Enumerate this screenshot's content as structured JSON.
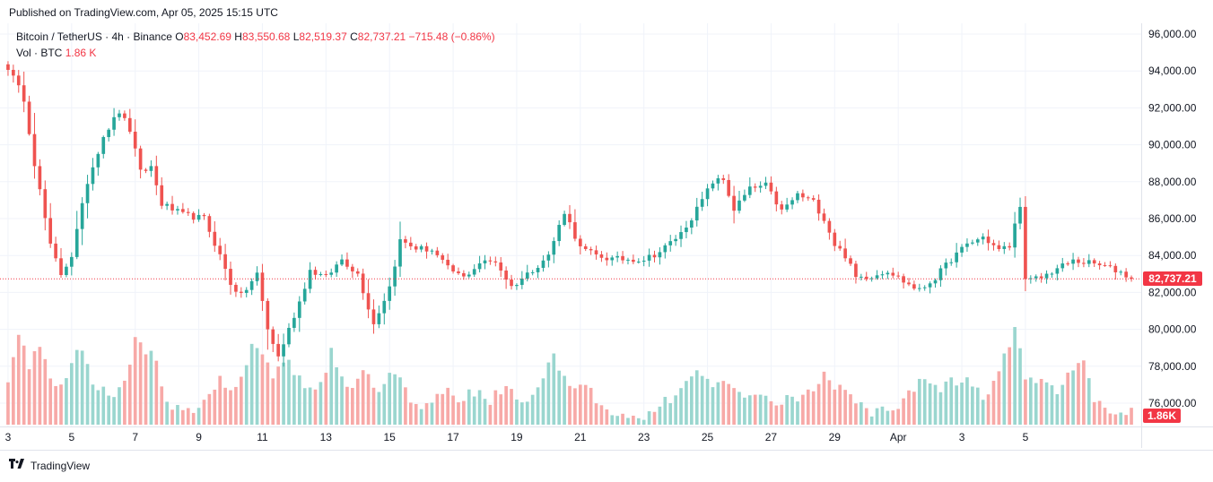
{
  "header": {
    "published": "Published on TradingView.com, Apr 05, 2025 15:15 UTC"
  },
  "legend": {
    "symbol": "Bitcoin / TetherUS · 4h · Binance",
    "o_label": "O",
    "o_value": "83,452.69",
    "h_label": "H",
    "h_value": "83,550.68",
    "l_label": "L",
    "l_value": "82,519.37",
    "c_label": "C",
    "c_value": "82,737.21",
    "change": "−715.48 (−0.86%)",
    "vol_label": "Vol · BTC",
    "vol_value": "1.86 K"
  },
  "price_axis": {
    "ticks": [
      "96,000.00",
      "94,000.00",
      "92,000.00",
      "90,000.00",
      "88,000.00",
      "86,000.00",
      "84,000.00",
      "82,000.00",
      "80,000.00",
      "78,000.00",
      "76,000.00"
    ],
    "current_price_label": "82,737.21",
    "current_volume_label": "1.86K"
  },
  "time_axis": {
    "labels": [
      "3",
      "5",
      "7",
      "9",
      "11",
      "13",
      "15",
      "17",
      "19",
      "21",
      "23",
      "25",
      "27",
      "29",
      "Apr",
      "3",
      "5"
    ]
  },
  "branding": {
    "name": "TradingView",
    "logo_icon": "tradingview-logo-icon"
  },
  "colors": {
    "up": "#26a69a",
    "down": "#ef5350",
    "vol_up": "#9ad6cf",
    "vol_down": "#f7a9a7",
    "grid": "#f0f3fa",
    "current_line": "#f23645"
  },
  "chart_data": {
    "type": "candlestick",
    "symbol": "BTCUSDT",
    "interval": "4h",
    "ylim": [
      75000,
      96600
    ],
    "current_price": 82737.21,
    "anchors": [
      [
        0,
        94200
      ],
      [
        3,
        92500
      ],
      [
        5,
        89000
      ],
      [
        8,
        84500
      ],
      [
        10,
        83000
      ],
      [
        12,
        84000
      ],
      [
        15,
        88000
      ],
      [
        18,
        90500
      ],
      [
        21,
        91800
      ],
      [
        23,
        90800
      ],
      [
        25,
        88500
      ],
      [
        27,
        88800
      ],
      [
        29,
        86800
      ],
      [
        33,
        86200
      ],
      [
        37,
        86000
      ],
      [
        40,
        84000
      ],
      [
        42,
        82500
      ],
      [
        44,
        81800
      ],
      [
        47,
        83000
      ],
      [
        49,
        80000
      ],
      [
        51,
        78500
      ],
      [
        53,
        80000
      ],
      [
        55,
        81500
      ],
      [
        57,
        83200
      ],
      [
        60,
        82800
      ],
      [
        63,
        83800
      ],
      [
        66,
        83000
      ],
      [
        69,
        80300
      ],
      [
        72,
        82300
      ],
      [
        74,
        84800
      ],
      [
        77,
        84400
      ],
      [
        80,
        84300
      ],
      [
        83,
        83300
      ],
      [
        86,
        82800
      ],
      [
        89,
        83600
      ],
      [
        92,
        83700
      ],
      [
        95,
        82300
      ],
      [
        98,
        83000
      ],
      [
        102,
        84000
      ],
      [
        105,
        86400
      ],
      [
        108,
        84400
      ],
      [
        111,
        84000
      ],
      [
        114,
        83800
      ],
      [
        117,
        83800
      ],
      [
        120,
        83800
      ],
      [
        123,
        84200
      ],
      [
        127,
        85200
      ],
      [
        130,
        86500
      ],
      [
        133,
        88000
      ],
      [
        135,
        88100
      ],
      [
        137,
        86500
      ],
      [
        140,
        87600
      ],
      [
        143,
        87800
      ],
      [
        146,
        86400
      ],
      [
        149,
        87300
      ],
      [
        152,
        86900
      ],
      [
        154,
        86000
      ],
      [
        156,
        84600
      ],
      [
        158,
        84000
      ],
      [
        160,
        82800
      ],
      [
        163,
        82900
      ],
      [
        166,
        83200
      ],
      [
        169,
        82600
      ],
      [
        172,
        82100
      ],
      [
        175,
        82800
      ],
      [
        178,
        83800
      ],
      [
        181,
        84600
      ],
      [
        184,
        85000
      ],
      [
        187,
        84300
      ],
      [
        189,
        84500
      ],
      [
        191,
        86800
      ],
      [
        192,
        82600
      ],
      [
        195,
        82800
      ],
      [
        198,
        83300
      ],
      [
        201,
        83700
      ],
      [
        204,
        83600
      ],
      [
        207,
        83400
      ],
      [
        210,
        83100
      ],
      [
        212,
        82737
      ]
    ],
    "volume_anchors": [
      [
        0,
        0.6
      ],
      [
        2,
        1.2
      ],
      [
        4,
        0.7
      ],
      [
        6,
        1.05
      ],
      [
        8,
        0.55
      ],
      [
        10,
        0.45
      ],
      [
        12,
        0.8
      ],
      [
        14,
        0.95
      ],
      [
        16,
        0.55
      ],
      [
        18,
        0.45
      ],
      [
        20,
        0.3
      ],
      [
        22,
        0.55
      ],
      [
        24,
        1.1
      ],
      [
        26,
        0.95
      ],
      [
        28,
        0.85
      ],
      [
        30,
        0.25
      ],
      [
        33,
        0.15
      ],
      [
        36,
        0.15
      ],
      [
        38,
        0.35
      ],
      [
        40,
        0.55
      ],
      [
        43,
        0.45
      ],
      [
        46,
        1.0
      ],
      [
        48,
        0.9
      ],
      [
        50,
        0.65
      ],
      [
        53,
        0.8
      ],
      [
        56,
        0.45
      ],
      [
        59,
        0.5
      ],
      [
        61,
        0.9
      ],
      [
        64,
        0.45
      ],
      [
        67,
        0.7
      ],
      [
        70,
        0.35
      ],
      [
        73,
        0.7
      ],
      [
        76,
        0.3
      ],
      [
        79,
        0.25
      ],
      [
        82,
        0.45
      ],
      [
        85,
        0.35
      ],
      [
        88,
        0.4
      ],
      [
        91,
        0.3
      ],
      [
        94,
        0.5
      ],
      [
        97,
        0.3
      ],
      [
        100,
        0.45
      ],
      [
        103,
        0.85
      ],
      [
        106,
        0.45
      ],
      [
        109,
        0.5
      ],
      [
        112,
        0.2
      ],
      [
        115,
        0.15
      ],
      [
        118,
        0.1
      ],
      [
        121,
        0.15
      ],
      [
        124,
        0.3
      ],
      [
        127,
        0.4
      ],
      [
        130,
        0.75
      ],
      [
        133,
        0.45
      ],
      [
        136,
        0.5
      ],
      [
        139,
        0.35
      ],
      [
        142,
        0.4
      ],
      [
        145,
        0.3
      ],
      [
        148,
        0.35
      ],
      [
        151,
        0.4
      ],
      [
        154,
        0.6
      ],
      [
        157,
        0.45
      ],
      [
        160,
        0.3
      ],
      [
        163,
        0.15
      ],
      [
        166,
        0.2
      ],
      [
        169,
        0.3
      ],
      [
        172,
        0.55
      ],
      [
        175,
        0.45
      ],
      [
        178,
        0.55
      ],
      [
        181,
        0.55
      ],
      [
        184,
        0.35
      ],
      [
        186,
        0.5
      ],
      [
        188,
        0.9
      ],
      [
        190,
        1.2
      ],
      [
        192,
        0.6
      ],
      [
        195,
        0.55
      ],
      [
        198,
        0.4
      ],
      [
        201,
        0.75
      ],
      [
        203,
        0.85
      ],
      [
        205,
        0.35
      ],
      [
        208,
        0.15
      ],
      [
        210,
        0.15
      ],
      [
        212,
        0.17
      ]
    ],
    "candle_count": 213
  }
}
